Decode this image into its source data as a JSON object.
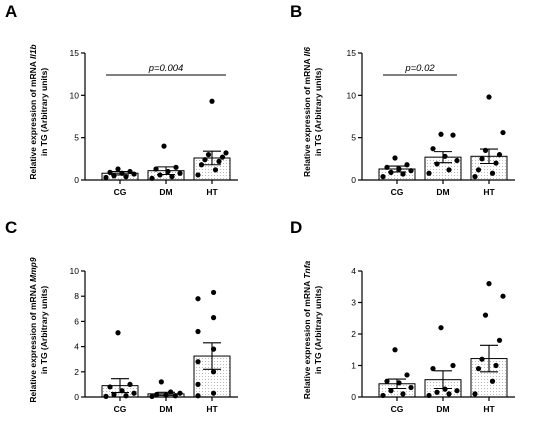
{
  "chart_data": [
    {
      "type": "bar",
      "panel": "A",
      "categories": [
        "CG",
        "DM",
        "HT"
      ],
      "values": [
        0.8,
        1.1,
        2.6
      ],
      "sem": [
        0.2,
        0.45,
        0.8
      ],
      "points": [
        [
          0.3,
          0.4,
          0.5,
          0.7,
          0.8,
          0.9,
          1.0,
          1.3
        ],
        [
          0.2,
          0.4,
          0.6,
          0.8,
          1.0,
          1.3,
          1.5,
          4.0
        ],
        [
          0.6,
          1.2,
          1.8,
          2.2,
          2.4,
          2.7,
          3.0,
          3.2,
          9.3
        ]
      ],
      "ylabel_main": "Relative expression of mRNA ",
      "gene": "Il1b",
      "ylabel_line2": "in TG (Arbitrary units)",
      "ylim": [
        0,
        15
      ],
      "yticks": [
        "0",
        "5",
        "10",
        "15"
      ],
      "significance": {
        "from": "CG",
        "to": "HT",
        "label": "p=0.004"
      }
    },
    {
      "type": "bar",
      "panel": "B",
      "categories": [
        "CG",
        "DM",
        "HT"
      ],
      "values": [
        1.3,
        2.7,
        2.8
      ],
      "sem": [
        0.35,
        0.65,
        0.85
      ],
      "points": [
        [
          0.4,
          0.7,
          0.9,
          1.1,
          1.3,
          1.5,
          1.8,
          2.6
        ],
        [
          0.8,
          1.2,
          1.9,
          2.3,
          2.8,
          3.7,
          5.3,
          5.4
        ],
        [
          0.4,
          0.8,
          1.2,
          2.0,
          2.5,
          3.0,
          3.5,
          5.6,
          9.8
        ]
      ],
      "ylabel_main": "Relative expression of mRNA ",
      "gene": "Il6",
      "ylabel_line2": "in TG (Arbitrary units)",
      "ylim": [
        0,
        15
      ],
      "yticks": [
        "0",
        "5",
        "10",
        "15"
      ],
      "significance": {
        "from": "CG",
        "to": "DM",
        "label": "p=0.02"
      }
    },
    {
      "type": "bar",
      "panel": "C",
      "categories": [
        "CG",
        "DM",
        "HT"
      ],
      "values": [
        0.9,
        0.25,
        3.25
      ],
      "sem": [
        0.55,
        0.12,
        1.05
      ],
      "points": [
        [
          0.05,
          0.1,
          0.2,
          0.3,
          0.5,
          0.8,
          1.0,
          5.1
        ],
        [
          0.05,
          0.1,
          0.15,
          0.2,
          0.3,
          0.4,
          1.2
        ],
        [
          0.1,
          0.3,
          1.0,
          2.0,
          2.8,
          3.8,
          5.2,
          6.3,
          7.8,
          8.3
        ]
      ],
      "ylabel_main": "Relative expression of mRNA ",
      "gene": "Mmp9",
      "ylabel_line2": "in TG (Arbitrary units)",
      "ylim": [
        0,
        10
      ],
      "yticks": [
        "0",
        "2",
        "4",
        "6",
        "8",
        "10"
      ],
      "significance": null
    },
    {
      "type": "bar",
      "panel": "D",
      "categories": [
        "CG",
        "DM",
        "HT"
      ],
      "values": [
        0.42,
        0.55,
        1.22
      ],
      "sem": [
        0.15,
        0.28,
        0.42
      ],
      "points": [
        [
          0.05,
          0.1,
          0.2,
          0.3,
          0.45,
          0.5,
          0.7,
          1.5
        ],
        [
          0.05,
          0.1,
          0.15,
          0.2,
          0.25,
          0.9,
          1.0,
          2.2
        ],
        [
          0.1,
          0.5,
          0.9,
          1.0,
          1.2,
          1.8,
          2.6,
          3.2,
          3.6
        ]
      ],
      "ylabel_main": "Relative expression of mRNA ",
      "gene": "Tnfa",
      "ylabel_line2": "in TG (Arbitrary units)",
      "ylim": [
        0,
        4
      ],
      "yticks": [
        "0",
        "1",
        "2",
        "3",
        "4"
      ],
      "significance": null
    }
  ]
}
